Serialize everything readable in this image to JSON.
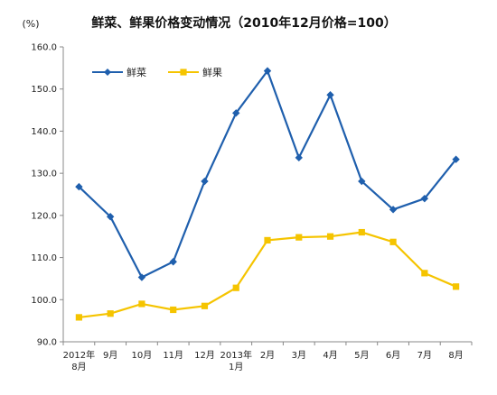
{
  "chart_data": {
    "type": "line",
    "title": "鲜菜、鲜果价格变动情况（2010年12月价格=100）",
    "ylabel": "(%)",
    "xlabel": "",
    "ylim": [
      90,
      160
    ],
    "yticks": [
      "90.0",
      "100.0",
      "110.0",
      "120.0",
      "130.0",
      "140.0",
      "150.0",
      "160.0"
    ],
    "categories": [
      [
        "2012年",
        "8月"
      ],
      [
        "9月"
      ],
      [
        "10月"
      ],
      [
        "11月"
      ],
      [
        "12月"
      ],
      [
        "2013年",
        "1月"
      ],
      [
        "2月"
      ],
      [
        "3月"
      ],
      [
        "4月"
      ],
      [
        "5月"
      ],
      [
        "6月"
      ],
      [
        "7月"
      ],
      [
        "8月"
      ]
    ],
    "series": [
      {
        "name": "鲜菜",
        "color": "#1f5fad",
        "marker": "diamond",
        "values": [
          126.8,
          119.7,
          105.3,
          109.0,
          128.1,
          144.3,
          154.3,
          133.7,
          148.6,
          128.1,
          121.4,
          124.0,
          133.3
        ]
      },
      {
        "name": "鲜果",
        "color": "#f5c400",
        "marker": "square",
        "values": [
          95.8,
          96.7,
          99.0,
          97.6,
          98.5,
          102.8,
          114.1,
          114.8,
          115.0,
          116.0,
          113.7,
          106.3,
          103.1
        ]
      }
    ],
    "grid": false,
    "legend": "top-left"
  }
}
